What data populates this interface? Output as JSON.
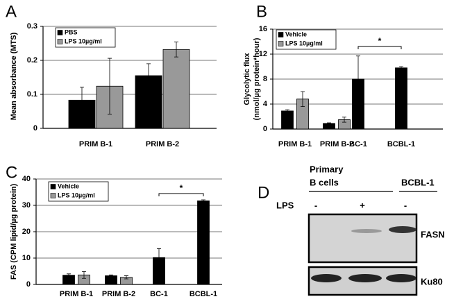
{
  "chart_data": [
    {
      "type": "bar",
      "panel_label": "A",
      "ylabel": [
        "Mean absorbance (MTS)"
      ],
      "categories": [
        "PRIM B-1",
        "PRIM B-2"
      ],
      "series": [
        {
          "name": "PBS",
          "color": "#000000",
          "values": [
            0.083,
            0.155
          ],
          "errors": [
            0.038,
            0.035
          ]
        },
        {
          "name": "LPS 10µg/ml",
          "color": "#999999",
          "values": [
            0.124,
            0.232
          ],
          "errors": [
            0.082,
            0.022
          ]
        }
      ],
      "ylim": [
        0,
        0.3
      ],
      "yticks": [
        0,
        0.1,
        0.2,
        0.3
      ],
      "grid": true
    },
    {
      "type": "bar",
      "panel_label": "B",
      "ylabel": [
        "Glycolytic flux",
        "(nmol/µg protein*hour)"
      ],
      "categories": [
        "PRIM B-1",
        "PRIM B-2",
        "BC-1",
        "BCBL-1"
      ],
      "series": [
        {
          "name": "Vehicle",
          "color": "#000000",
          "values": [
            2.9,
            0.9,
            8.0,
            9.8
          ],
          "errors": [
            0.2,
            0.1,
            3.7,
            0.2
          ]
        },
        {
          "name": "LPS 10µg/ml",
          "color": "#999999",
          "values": [
            4.8,
            1.5,
            null,
            null
          ],
          "errors": [
            1.2,
            0.4,
            null,
            null
          ]
        }
      ],
      "ylim": [
        0,
        16
      ],
      "yticks": [
        0,
        4,
        8,
        12,
        16
      ],
      "grid": true,
      "annotation": "*"
    },
    {
      "type": "bar",
      "panel_label": "C",
      "ylabel": [
        "FAS (CPM lipid/µg protein)"
      ],
      "categories": [
        "PRIM B-1",
        "PRIM B-2",
        "BC-1",
        "BCBL-1"
      ],
      "series": [
        {
          "name": "Vehicle",
          "color": "#000000",
          "values": [
            3.5,
            3.3,
            10.2,
            31.7
          ],
          "errors": [
            0.5,
            0.3,
            3.4,
            0.4
          ]
        },
        {
          "name": "LPS 10µg/ml",
          "color": "#999999",
          "values": [
            3.6,
            2.7,
            null,
            null
          ],
          "errors": [
            1.3,
            0.6,
            null,
            null
          ]
        }
      ],
      "ylim": [
        0,
        40
      ],
      "yticks": [
        0,
        10,
        20,
        30,
        40
      ],
      "grid": true,
      "annotation": "*"
    }
  ],
  "blot": {
    "panel_label": "D",
    "groups": [
      [
        "Primary",
        "B cells"
      ],
      [
        "BCBL-1"
      ]
    ],
    "treatment_label": "LPS",
    "lanes": [
      "-",
      "+",
      "-"
    ],
    "rows": [
      "FASN",
      "Ku80"
    ]
  }
}
